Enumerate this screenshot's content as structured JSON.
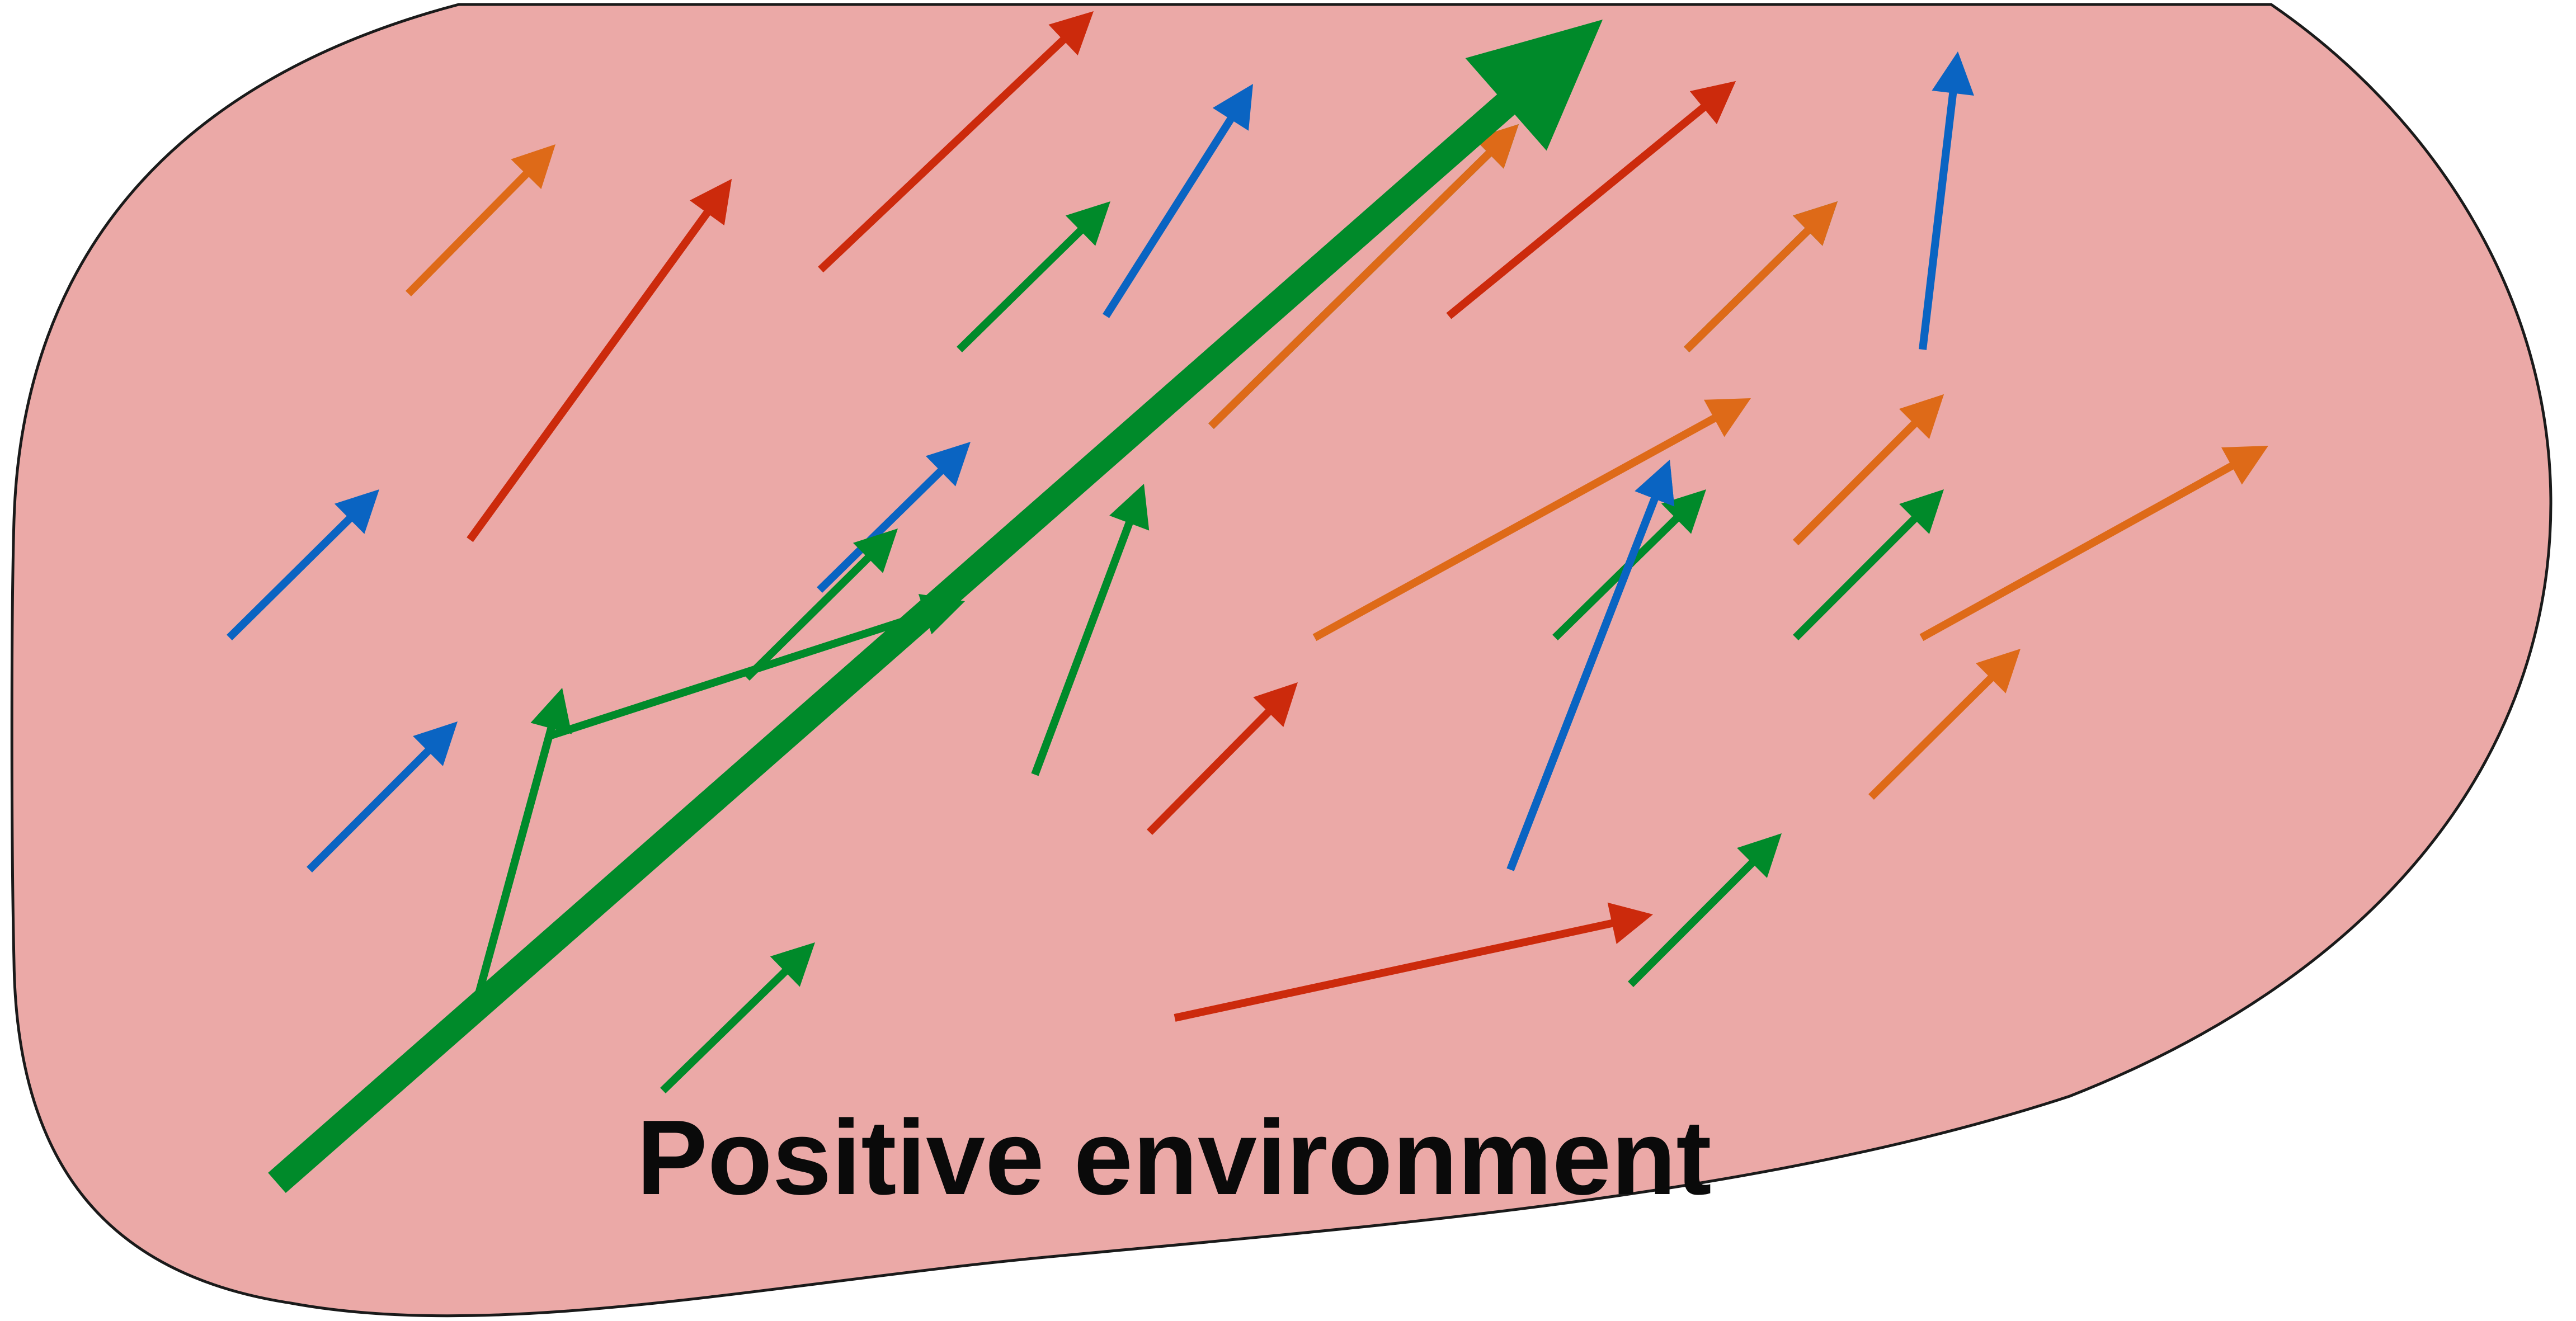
{
  "caption": "Positive environment",
  "colors": {
    "region_fill": "#eba9a7",
    "region_stroke": "#1a1a1a",
    "green": "#008a2a",
    "red": "#cc2a0c",
    "blue": "#0a64c2",
    "orange": "#de6a18",
    "text": "#0a0a0a"
  },
  "arrow_colors": [
    "orange",
    "red",
    "red",
    "green",
    "blue",
    "green",
    "blue",
    "red",
    "green",
    "blue",
    "orange",
    "blue",
    "green",
    "green",
    "red",
    "blue",
    "green",
    "green",
    "green",
    "green",
    "orange",
    "red",
    "orange",
    "green",
    "orange",
    "orange",
    "green",
    "red",
    "orange",
    "blue",
    "green",
    "orange",
    "red",
    "green",
    "blue"
  ]
}
